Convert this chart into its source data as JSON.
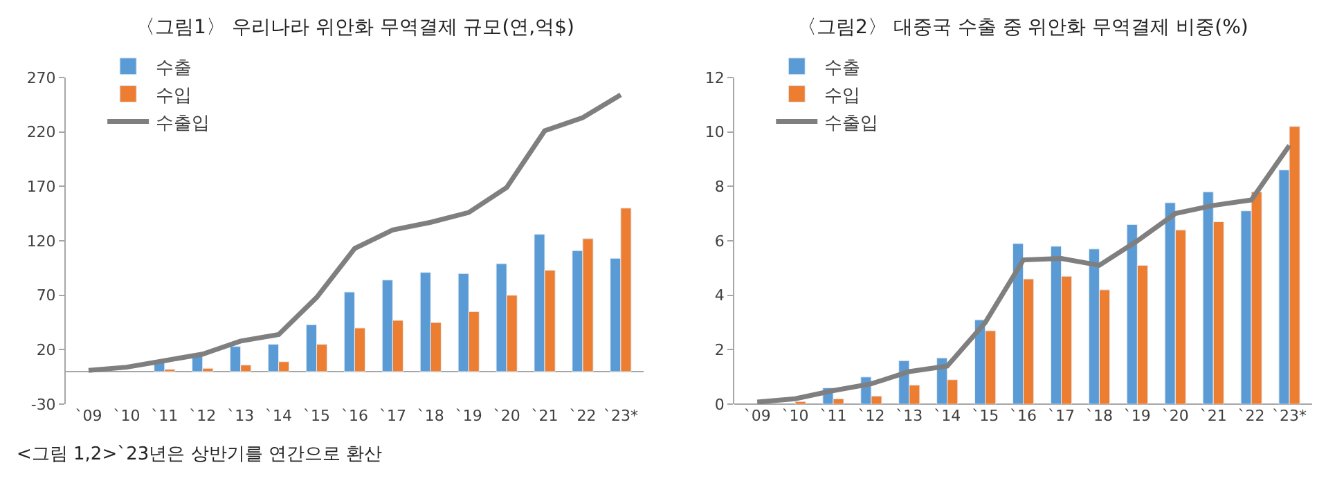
{
  "chart_data": [
    {
      "type": "bar",
      "title": "〈그림1〉 우리나라 위안화 무역결제 규모(연,억$)",
      "categories": [
        "`09",
        "`10",
        "`11",
        "`12",
        "`13",
        "`14",
        "`15",
        "`16",
        "`17",
        "`18",
        "`19",
        "`20",
        "`21",
        "`22",
        "`23*"
      ],
      "series": [
        {
          "name": "수출",
          "color": "#5b9bd5",
          "values": [
            null,
            null,
            10,
            15,
            23,
            25,
            43,
            73,
            84,
            91,
            90,
            99,
            126,
            111,
            104
          ]
        },
        {
          "name": "수입",
          "color": "#ed7d31",
          "values": [
            null,
            null,
            2,
            3,
            6,
            9,
            25,
            40,
            47,
            45,
            55,
            70,
            93,
            122,
            150
          ]
        },
        {
          "name": "수출입",
          "color": "#7f7f7f",
          "type": "line",
          "values": [
            1,
            4,
            10,
            16,
            28,
            34,
            68,
            113,
            130,
            137,
            146,
            169,
            221,
            233,
            254
          ]
        }
      ],
      "ylim": [
        -30,
        270
      ],
      "yticks": [
        -30,
        20,
        70,
        120,
        170,
        220,
        270
      ],
      "legend": "top left",
      "annotations": [
        "<그림 1,2>`23년은 상반기를 연간으로 환산"
      ]
    },
    {
      "type": "bar",
      "title": "〈그림2〉 대중국 수출 중 위안화 무역결제 비중(%)",
      "categories": [
        "`09",
        "`10",
        "`11",
        "`12",
        "`13",
        "`14",
        "`15",
        "`16",
        "`17",
        "`18",
        "`19",
        "`20",
        "`21",
        "`22",
        "`23*"
      ],
      "series": [
        {
          "name": "수출",
          "color": "#5b9bd5",
          "values": [
            null,
            null,
            0.6,
            1.0,
            1.6,
            1.7,
            3.1,
            5.9,
            5.8,
            5.7,
            6.6,
            7.4,
            7.8,
            7.1,
            8.6
          ]
        },
        {
          "name": "수입",
          "color": "#ed7d31",
          "values": [
            null,
            0.1,
            0.2,
            0.3,
            0.7,
            0.9,
            2.7,
            4.6,
            4.7,
            4.2,
            5.1,
            6.4,
            6.7,
            7.8,
            10.2
          ]
        },
        {
          "name": "수출입",
          "color": "#7f7f7f",
          "type": "line",
          "values": [
            0.08,
            0.2,
            0.5,
            0.75,
            1.2,
            1.4,
            3.0,
            5.3,
            5.35,
            5.1,
            6.0,
            7.0,
            7.3,
            7.5,
            9.5
          ]
        }
      ],
      "ylim": [
        0,
        12
      ],
      "yticks": [
        0,
        2,
        4,
        6,
        8,
        10,
        12
      ],
      "legend": "top left"
    }
  ]
}
